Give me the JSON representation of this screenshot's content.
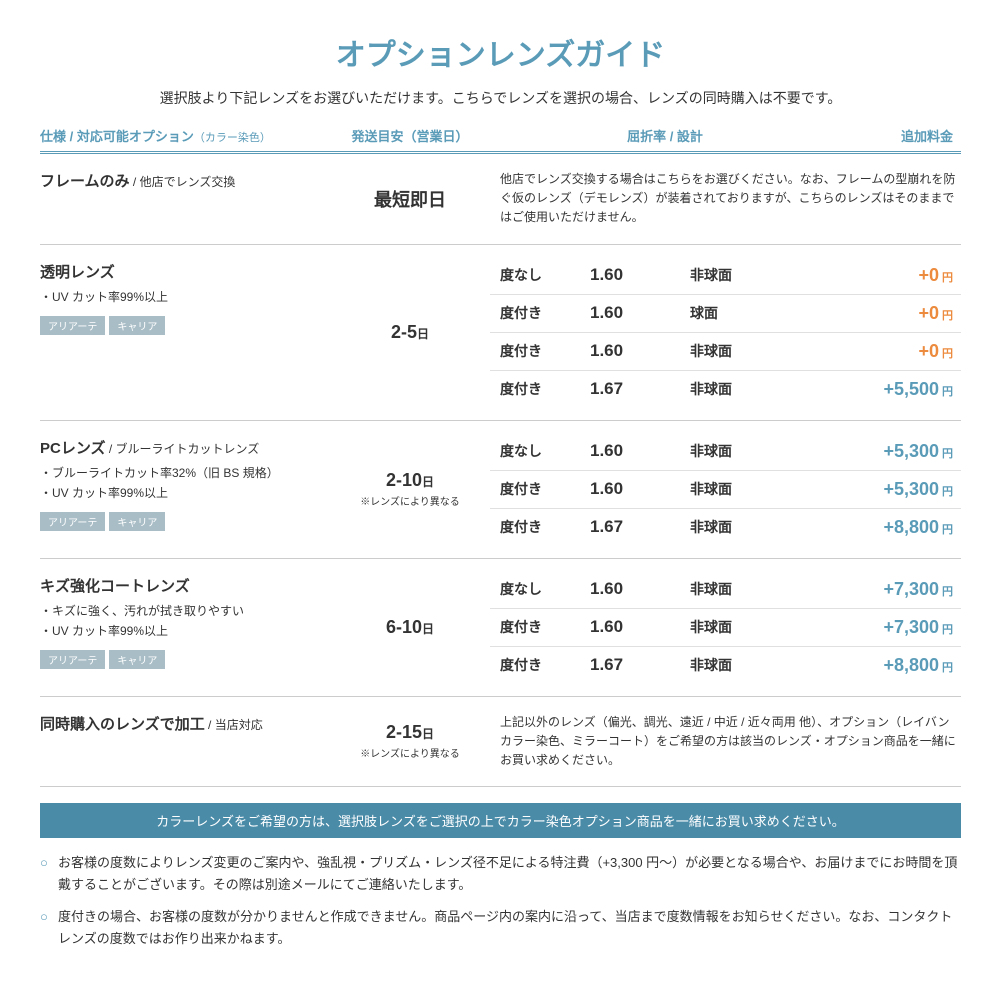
{
  "colors": {
    "accent": "#5a9bb8",
    "accent_dark": "#4a8ba8",
    "price_zero": "#ec8a3d",
    "price_normal": "#5a9bb8",
    "tag_bg": "#a8bdc6",
    "text": "#333333"
  },
  "title": "オプションレンズガイド",
  "subtitle": "選択肢より下記レンズをお選びいただけます。こちらでレンズを選択の場合、レンズの同時購入は不要です。",
  "headers": {
    "spec": "仕様 / 対応可能オプション",
    "spec_note": "（カラー染色）",
    "shipping": "発送目安（営業日）",
    "index_design": "屈折率 / 設計",
    "fee": "追加料金"
  },
  "sections": [
    {
      "name": "フレームのみ",
      "name_sub": " / 他店でレンズ交換",
      "bullets": [],
      "tags": [],
      "shipping_main": "最短即日",
      "shipping_main_unit": "",
      "shipping_note": "",
      "desc": "他店でレンズ交換する場合はこちらをお選びください。なお、フレームの型崩れを防ぐ仮のレンズ（デモレンズ）が装着されておりますが、こちらのレンズはそのままではご使用いただけません。",
      "rows": []
    },
    {
      "name": "透明レンズ",
      "name_sub": "",
      "bullets": [
        "・UV カット率99%以上"
      ],
      "tags": [
        "アリアーテ",
        "キャリア"
      ],
      "shipping_main": "2-5",
      "shipping_main_unit": "日",
      "shipping_note": "",
      "desc": "",
      "rows": [
        {
          "power": "度なし",
          "index": "1.60",
          "design": "非球面",
          "price": "+0",
          "price_color": "#ec8a3d"
        },
        {
          "power": "度付き",
          "index": "1.60",
          "design": "球面",
          "price": "+0",
          "price_color": "#ec8a3d"
        },
        {
          "power": "度付き",
          "index": "1.60",
          "design": "非球面",
          "price": "+0",
          "price_color": "#ec8a3d"
        },
        {
          "power": "度付き",
          "index": "1.67",
          "design": "非球面",
          "price": "+5,500",
          "price_color": "#5a9bb8"
        }
      ]
    },
    {
      "name": "PCレンズ",
      "name_sub": " / ブルーライトカットレンズ",
      "bullets": [
        "・ブルーライトカット率32%（旧 BS 規格）",
        "・UV カット率99%以上"
      ],
      "tags": [
        "アリアーテ",
        "キャリア"
      ],
      "shipping_main": "2-10",
      "shipping_main_unit": "日",
      "shipping_note": "※レンズにより異なる",
      "desc": "",
      "rows": [
        {
          "power": "度なし",
          "index": "1.60",
          "design": "非球面",
          "price": "+5,300",
          "price_color": "#5a9bb8"
        },
        {
          "power": "度付き",
          "index": "1.60",
          "design": "非球面",
          "price": "+5,300",
          "price_color": "#5a9bb8"
        },
        {
          "power": "度付き",
          "index": "1.67",
          "design": "非球面",
          "price": "+8,800",
          "price_color": "#5a9bb8"
        }
      ]
    },
    {
      "name": "キズ強化コートレンズ",
      "name_sub": "",
      "bullets": [
        "・キズに強く、汚れが拭き取りやすい",
        "・UV カット率99%以上"
      ],
      "tags": [
        "アリアーテ",
        "キャリア"
      ],
      "shipping_main": "6-10",
      "shipping_main_unit": "日",
      "shipping_note": "",
      "desc": "",
      "rows": [
        {
          "power": "度なし",
          "index": "1.60",
          "design": "非球面",
          "price": "+7,300",
          "price_color": "#5a9bb8"
        },
        {
          "power": "度付き",
          "index": "1.60",
          "design": "非球面",
          "price": "+7,300",
          "price_color": "#5a9bb8"
        },
        {
          "power": "度付き",
          "index": "1.67",
          "design": "非球面",
          "price": "+8,800",
          "price_color": "#5a9bb8"
        }
      ]
    },
    {
      "name": "同時購入のレンズで加工",
      "name_sub": " / 当店対応",
      "bullets": [],
      "tags": [],
      "shipping_main": "2-15",
      "shipping_main_unit": "日",
      "shipping_note": "※レンズにより異なる",
      "desc": "上記以外のレンズ（偏光、調光、遠近 / 中近 / 近々両用 他）、オプション（レイバンカラー染色、ミラーコート）をご希望の方は該当のレンズ・オプション商品を一緒にお買い求めください。",
      "rows": []
    }
  ],
  "banner": "カラーレンズをご希望の方は、選択肢レンズをご選択の上でカラー染色オプション商品を一緒にお買い求めください。",
  "notes": [
    "お客様の度数によりレンズ変更のご案内や、強乱視・プリズム・レンズ径不足による特注費（+3,300 円〜）が必要となる場合や、お届けまでにお時間を頂戴することがございます。その際は別途メールにてご連絡いたします。",
    "度付きの場合、お客様の度数が分かりませんと作成できません。商品ページ内の案内に沿って、当店まで度数情報をお知らせください。なお、コンタクトレンズの度数ではお作り出来かねます。"
  ],
  "yen_label": "円",
  "bullet_char": "○"
}
